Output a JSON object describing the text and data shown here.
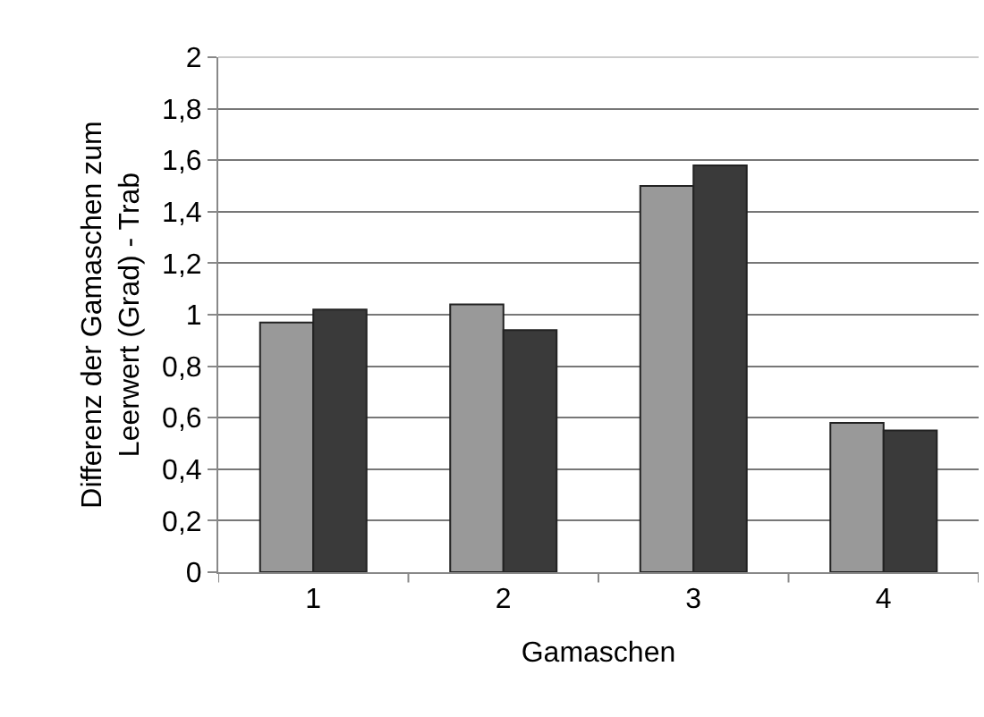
{
  "chart_data": {
    "type": "bar",
    "xlabel": "Gamaschen",
    "ylabel": "Differenz der Gamaschen zum Leerwert (Grad) - Trab",
    "categories": [
      "1",
      "2",
      "3",
      "4"
    ],
    "series": [
      {
        "color": "#999999",
        "values": [
          0.97,
          1.04,
          1.5,
          0.58
        ]
      },
      {
        "color": "#3a3a3a",
        "values": [
          1.02,
          0.94,
          1.58,
          0.55
        ]
      }
    ],
    "ylim": [
      0,
      2
    ],
    "yticks": [
      0,
      {
        "value": 0.2,
        "label": "0,2"
      },
      {
        "value": 0.4,
        "label": "0,4"
      },
      {
        "value": 0.6,
        "label": "0,6"
      },
      {
        "value": 0.8,
        "label": "0,8"
      },
      1,
      {
        "value": 1.2,
        "label": "1,2"
      },
      {
        "value": 1.4,
        "label": "1,4"
      },
      {
        "value": 1.6,
        "label": "1,6"
      },
      {
        "value": 1.8,
        "label": "1,8"
      },
      2
    ],
    "grid": "y"
  }
}
